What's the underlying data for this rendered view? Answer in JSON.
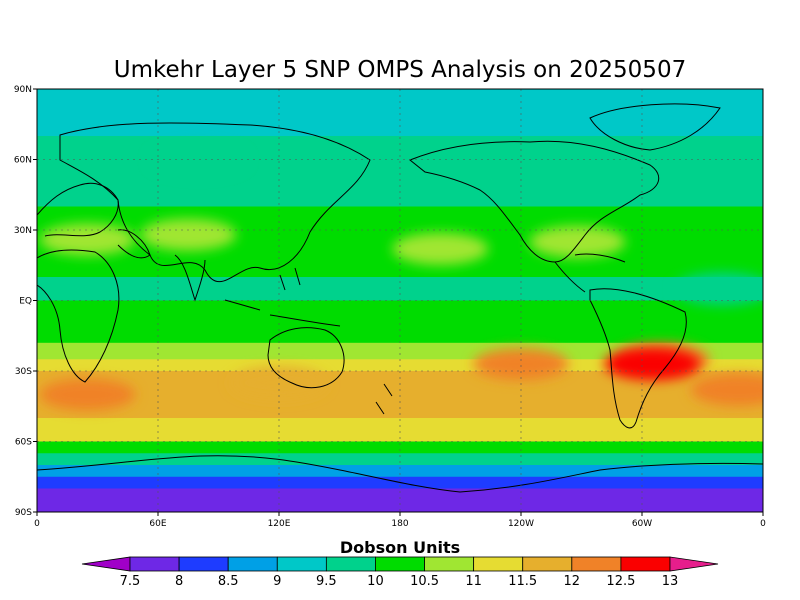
{
  "chart_data": {
    "type": "heatmap",
    "title": "Umkehr Layer 5 SNP OMPS Analysis on 20250507",
    "units": "Dobson Units",
    "projection": "cylindrical equidistant",
    "xlim": [
      0,
      360
    ],
    "ylim": [
      -90,
      90
    ],
    "grid": true,
    "xticks": [
      {
        "lon": 0,
        "label": "0"
      },
      {
        "lon": 60,
        "label": "60E"
      },
      {
        "lon": 120,
        "label": "120E"
      },
      {
        "lon": 180,
        "label": "180"
      },
      {
        "lon": 240,
        "label": "120W"
      },
      {
        "lon": 300,
        "label": "60W"
      },
      {
        "lon": 360,
        "label": "0"
      }
    ],
    "yticks": [
      {
        "lat": 90,
        "label": "90N"
      },
      {
        "lat": 60,
        "label": "60N"
      },
      {
        "lat": 30,
        "label": "30N"
      },
      {
        "lat": 0,
        "label": "EQ"
      },
      {
        "lat": -30,
        "label": "30S"
      },
      {
        "lat": -60,
        "label": "60S"
      },
      {
        "lat": -90,
        "label": "90S"
      }
    ],
    "levels": [
      "7.5",
      "8",
      "8.5",
      "9",
      "9.5",
      "10",
      "10.5",
      "11",
      "11.5",
      "12",
      "12.5",
      "13"
    ],
    "level_colors": [
      "#a000c8",
      "#6e28e6",
      "#1e3cff",
      "#00a0e6",
      "#00c8c8",
      "#00d28c",
      "#00dc00",
      "#a0e632",
      "#e6dc32",
      "#e6af2d",
      "#f08228",
      "#fa0000",
      "#e61e8c"
    ],
    "zonal_profile": [
      {
        "lat": 90,
        "du": 9.2
      },
      {
        "lat": 80,
        "du": 9.1
      },
      {
        "lat": 70,
        "du": 9.6
      },
      {
        "lat": 60,
        "du": 9.7
      },
      {
        "lat": 50,
        "du": 9.6
      },
      {
        "lat": 40,
        "du": 10.0
      },
      {
        "lat": 30,
        "du": 10.4
      },
      {
        "lat": 20,
        "du": 10.1
      },
      {
        "lat": 10,
        "du": 9.9
      },
      {
        "lat": 0,
        "du": 10.0
      },
      {
        "lat": -10,
        "du": 10.1
      },
      {
        "lat": -18,
        "du": 10.6
      },
      {
        "lat": -25,
        "du": 11.1
      },
      {
        "lat": -30,
        "du": 11.6
      },
      {
        "lat": -40,
        "du": 11.7
      },
      {
        "lat": -50,
        "du": 11.4
      },
      {
        "lat": -55,
        "du": 11.0
      },
      {
        "lat": -60,
        "du": 10.3
      },
      {
        "lat": -65,
        "du": 9.6
      },
      {
        "lat": -70,
        "du": 8.9
      },
      {
        "lat": -75,
        "du": 8.2
      },
      {
        "lat": -80,
        "du": 7.8
      },
      {
        "lat": -90,
        "du": 7.6
      }
    ],
    "anomalies": [
      {
        "lon": 25,
        "lat": 26,
        "du": 10.5
      },
      {
        "lon": 75,
        "lat": 28,
        "du": 10.5
      },
      {
        "lon": 200,
        "lat": 22,
        "du": 10.5
      },
      {
        "lon": 268,
        "lat": 25,
        "du": 10.5
      },
      {
        "lon": 310,
        "lat": -25,
        "du": 12.0
      },
      {
        "lon": 305,
        "lat": -27,
        "du": 12.5
      },
      {
        "lon": 240,
        "lat": -27,
        "du": 12.0
      },
      {
        "lon": 25,
        "lat": -40,
        "du": 12.0
      },
      {
        "lon": 348,
        "lat": -38,
        "du": 12.0
      },
      {
        "lon": 120,
        "lat": -35,
        "du": 11.5
      },
      {
        "lon": 340,
        "lat": 5,
        "du": 9.5
      },
      {
        "lon": 80,
        "lat": 60,
        "du": 9.5
      }
    ]
  }
}
